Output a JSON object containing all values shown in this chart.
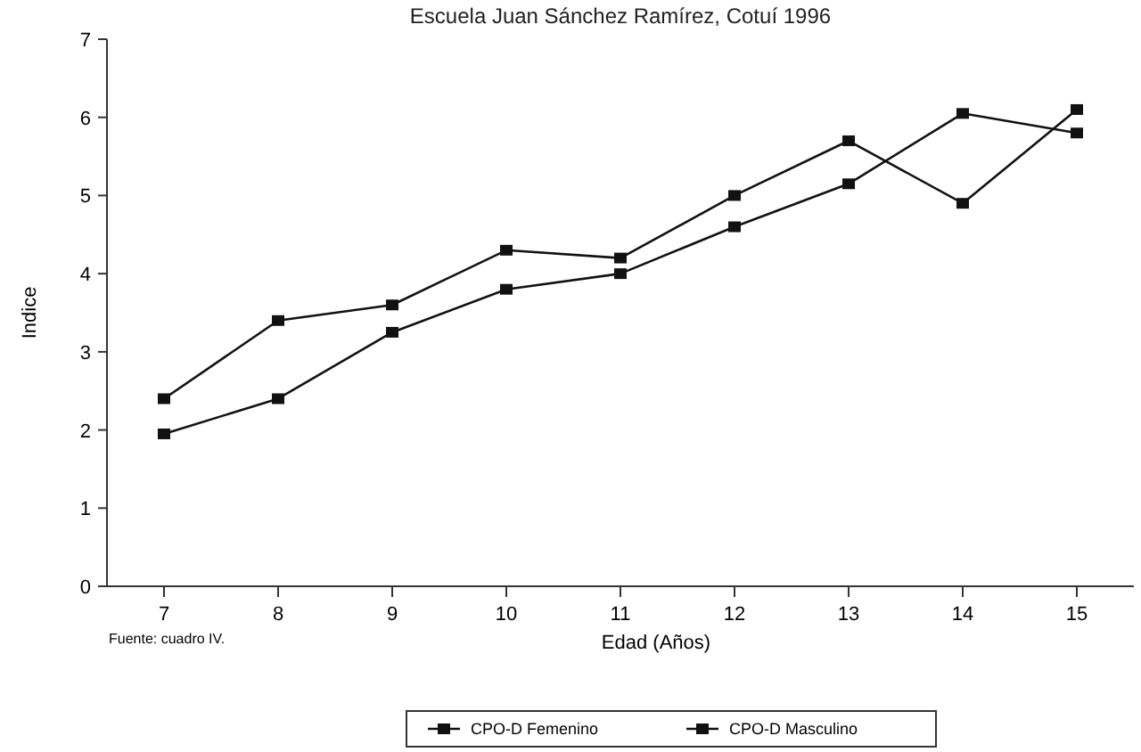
{
  "chart_data": {
    "type": "line",
    "title": "Escuela Juan Sánchez Ramírez, Cotuí 1996",
    "xlabel": "Edad (Años)",
    "ylabel": "Indice",
    "categories": [
      "7",
      "8",
      "9",
      "10",
      "11",
      "12",
      "13",
      "14",
      "15"
    ],
    "series": [
      {
        "name": "CPO-D Femenino",
        "color": "#111111",
        "values": [
          2.4,
          3.4,
          3.6,
          4.3,
          4.2,
          5.0,
          5.7,
          4.9,
          6.1
        ]
      },
      {
        "name": "CPO-D Masculino",
        "color": "#111111",
        "values": [
          1.95,
          2.4,
          3.25,
          3.8,
          4.0,
          4.6,
          5.15,
          6.05,
          5.8
        ]
      }
    ],
    "ylim": [
      0,
      7
    ],
    "yticks": [
      0,
      1,
      2,
      3,
      4,
      5,
      6,
      7
    ],
    "grid": false,
    "legend": "bottom",
    "marker": "square",
    "line_style": "solid",
    "annotations": [
      "Fuente: cuadro IV."
    ]
  }
}
